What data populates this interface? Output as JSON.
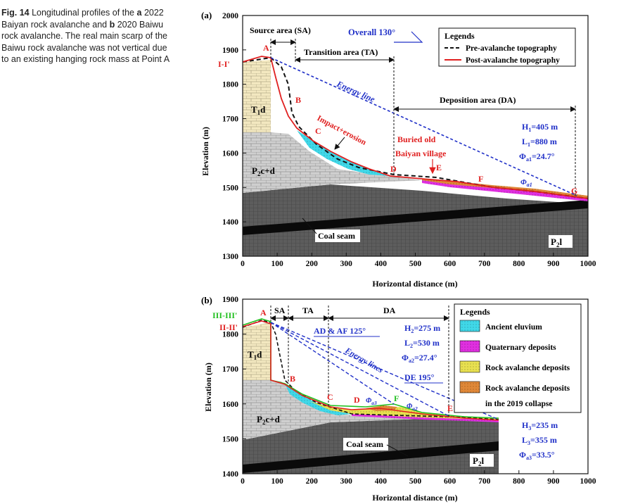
{
  "caption": {
    "label": "Fig. 14",
    "part1": "Longitudinal profiles of the",
    "a": "a",
    "part2": "2022 Baiyan rock avalanche and",
    "b": "b",
    "part3": "2020 Baiwu rock avalanche. The real main scarp of the Baiwu rock avalanche was not vertical due to an existing hanging rock mass at Point A"
  },
  "panel_a": {
    "tag": "(a)",
    "ylabel": "Elevation (m)",
    "xlabel": "Horizontal distance (m)",
    "xticks": [
      "0",
      "100",
      "200",
      "300",
      "400",
      "500",
      "600",
      "700",
      "800",
      "900",
      "1000"
    ],
    "yticks": [
      "1300",
      "1400",
      "1500",
      "1600",
      "1700",
      "1800",
      "1900",
      "2000"
    ],
    "section": "I-I'",
    "zones": {
      "sa": "Source area (SA)",
      "ta": "Transition area (TA)",
      "da": "Deposition area (DA)"
    },
    "overall": "Overall  130°",
    "energy_line": "Energy line",
    "impact": "Impact+erosion",
    "buried1": "Buried old",
    "buried2": "Baiyan village",
    "strata": {
      "t1d": "T",
      "t1d_sub": "1",
      "t1d_end": "d",
      "p2cd": "P",
      "p2cd_sub": "2",
      "p2cd_end": "c+d",
      "p2l": "P",
      "p2l_sub": "2",
      "p2l_end": "l",
      "coal": "Coal seam"
    },
    "points": [
      "A",
      "B",
      "C",
      "D",
      "E",
      "F",
      "G"
    ],
    "params": {
      "h": "H",
      "h_sub": "1",
      "h_val": "=405 m",
      "l": "L",
      "l_sub": "1",
      "l_val": "=880 m",
      "phi": "Φ",
      "phi_sub": "a1",
      "phi_val": "=24.7°",
      "phi_line": "Φ",
      "phi_line_sub": "a1"
    },
    "legend": {
      "title": "Legends",
      "pre": "Pre-avalanche topography",
      "post": "Post-avalanche topography"
    }
  },
  "panel_b": {
    "tag": "(b)",
    "ylabel": "Elevation (m)",
    "xlabel": "Horizontal distance (m)",
    "xticks": [
      "0",
      "100",
      "200",
      "300",
      "400",
      "500",
      "600",
      "700",
      "800",
      "900",
      "1000"
    ],
    "yticks": [
      "1400",
      "1500",
      "1600",
      "1700",
      "1800",
      "1900"
    ],
    "section1": "III-III'",
    "section2": "II-II'",
    "zones": {
      "sa": "SA",
      "ta": "TA",
      "da": "DA"
    },
    "ad_af": "AD & AF 125°",
    "de": "DE 195°",
    "energy_lines": "Energy lines",
    "strata": {
      "t1d": "T",
      "t1d_sub": "1",
      "t1d_end": "d",
      "p2cd": "P",
      "p2cd_sub": "2",
      "p2cd_end": "c+d",
      "p2l": "P",
      "p2l_sub": "2",
      "p2l_end": "l",
      "coal": "Coal seam"
    },
    "points": [
      "A",
      "B",
      "C",
      "D",
      "E",
      "F"
    ],
    "params2": {
      "h": "H",
      "h_sub": "2",
      "h_val": "=275 m",
      "l": "L",
      "l_sub": "2",
      "l_val": "=530 m",
      "phi": "Φ",
      "phi_sub": "a2",
      "phi_val": "=27.4°"
    },
    "params3": {
      "h": "H",
      "h_sub": "3",
      "h_val": "=235 m",
      "l": "L",
      "l_sub": "3",
      "l_val": "=355 m",
      "phi": "Φ",
      "phi_sub": "a3",
      "phi_val": "=33.5°"
    },
    "phi_a3": "Φ",
    "phi_a3_sub": "a3",
    "phi_a2": "Φ",
    "phi_a2_sub": "a2",
    "legend": {
      "title": "Legends",
      "eluvium": "Ancient eluvium",
      "quaternary": "Quaternary deposits",
      "rock": "Rock avalanche deposits",
      "rock2019a": "Rock avalanche deposits",
      "rock2019b": "in the 2019 collapse"
    }
  },
  "colors": {
    "grid": "#2a2a2a",
    "blue": "#2030c8",
    "red": "#e02020",
    "green": "#22c020",
    "cyan": "#3ad6e6",
    "magenta": "#e020e0",
    "yellow": "#e8e040",
    "orange": "#e08030",
    "sand": "#f3e8c0",
    "grey_light": "#c8c8c8",
    "grey_dark": "#6a6a6a"
  }
}
